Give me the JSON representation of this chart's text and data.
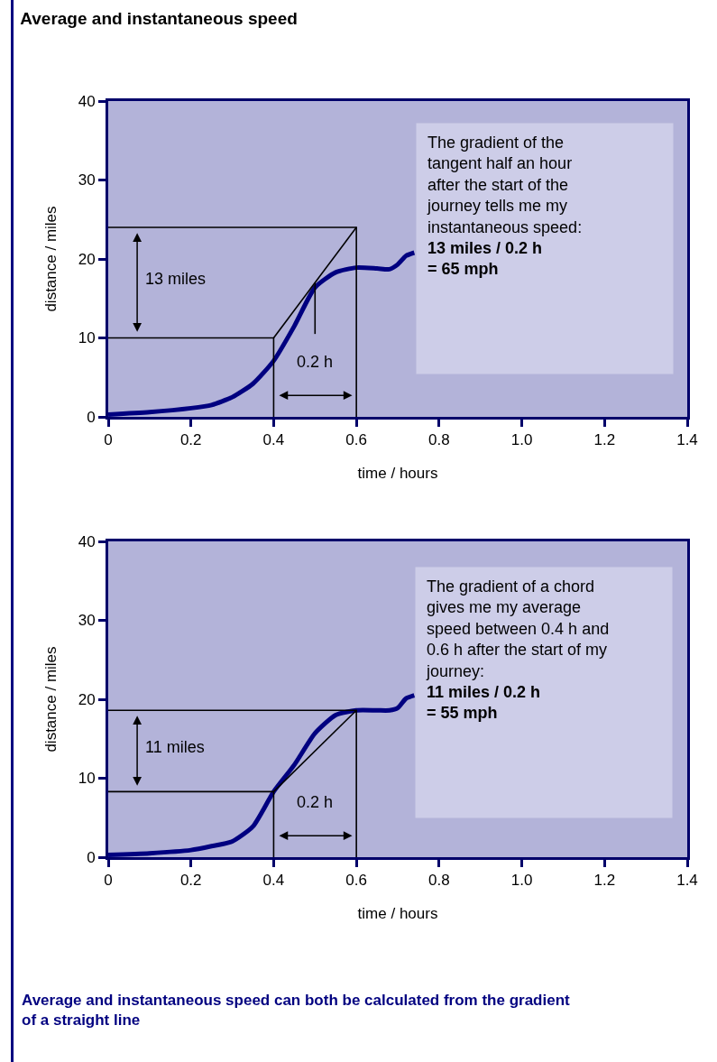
{
  "chart_data": [
    {
      "type": "line",
      "title": "Average and instantaneous speed",
      "xlabel": "time / hours",
      "ylabel": "distance / miles",
      "xlim": [
        0,
        1.4
      ],
      "xticks": [
        0,
        0.2,
        0.4,
        0.6,
        0.8,
        {
          "value": 1.0,
          "label": "1.0"
        },
        1.2,
        1.4
      ],
      "ylim": [
        0,
        40
      ],
      "yticks": [
        0,
        10,
        20,
        30,
        40
      ],
      "grid": false,
      "marker": "none",
      "series": [
        {
          "color": "#000080",
          "x": [
            0,
            0.1,
            0.2,
            0.25,
            0.3,
            0.35,
            0.4,
            0.45,
            0.5,
            0.55,
            0.6,
            0.65,
            0.68,
            0.7,
            0.72,
            0.74
          ],
          "values": [
            0.3,
            0.6,
            1.1,
            1.5,
            2.5,
            4.2,
            7.1,
            11.5,
            16.4,
            18.3,
            18.9,
            18.8,
            18.7,
            19.3,
            20.4,
            20.8
          ]
        },
        {
          "color": "#000000",
          "x": [
            0.4,
            0.6
          ],
          "values": [
            10,
            24
          ]
        },
        {
          "color": "#000000",
          "x": [
            0,
            0.4,
            0.4
          ],
          "values": [
            10,
            10,
            0
          ]
        },
        {
          "color": "#000000",
          "x": [
            0,
            0.6,
            0.6
          ],
          "values": [
            24,
            24,
            0
          ]
        },
        {
          "color": "#000000",
          "x": [
            0.5,
            0.5
          ],
          "values": [
            10.5,
            17
          ]
        }
      ],
      "annotations": [
        "The gradient of the\ntangent half an hour\nafter the start of the\njourney tells me my\ninstantaneous speed:",
        "13 miles / 0.2 h\n= 65 mph",
        "13 miles",
        "0.2 h"
      ]
    },
    {
      "type": "line",
      "xlabel": "time / hours",
      "ylabel": "distance / miles",
      "xlim": [
        0,
        1.4
      ],
      "xticks": [
        0,
        0.2,
        0.4,
        0.6,
        0.8,
        {
          "value": 1.0,
          "label": "1.0"
        },
        1.2,
        1.4
      ],
      "ylim": [
        0,
        40
      ],
      "yticks": [
        0,
        10,
        20,
        30,
        40
      ],
      "grid": false,
      "marker": "none",
      "series": [
        {
          "color": "#000080",
          "x": [
            0,
            0.1,
            0.2,
            0.25,
            0.3,
            0.35,
            0.4,
            0.45,
            0.5,
            0.55,
            0.6,
            0.65,
            0.68,
            0.7,
            0.72,
            0.74
          ],
          "values": [
            0.3,
            0.5,
            0.9,
            1.4,
            2.0,
            3.9,
            8.3,
            11.7,
            15.7,
            18.0,
            18.6,
            18.6,
            18.6,
            18.9,
            20.1,
            20.5
          ]
        },
        {
          "color": "#000000",
          "x": [
            0.4,
            0.6
          ],
          "values": [
            8.3,
            18.6
          ]
        },
        {
          "color": "#000000",
          "x": [
            0,
            0.4,
            0.4
          ],
          "values": [
            8.3,
            8.3,
            0
          ]
        },
        {
          "color": "#000000",
          "x": [
            0,
            0.6,
            0.6
          ],
          "values": [
            18.6,
            18.6,
            0
          ]
        }
      ],
      "annotations": [
        "The gradient of a chord\ngives me my average\nspeed between 0.4 h and\n0.6 h after the start of my\njourney:",
        "11 miles / 0.2 h\n= 55 mph",
        "11 miles",
        "0.2 h",
        "Average and instantaneous speed can both be calculated from the gradient\nof a straight line"
      ]
    }
  ]
}
